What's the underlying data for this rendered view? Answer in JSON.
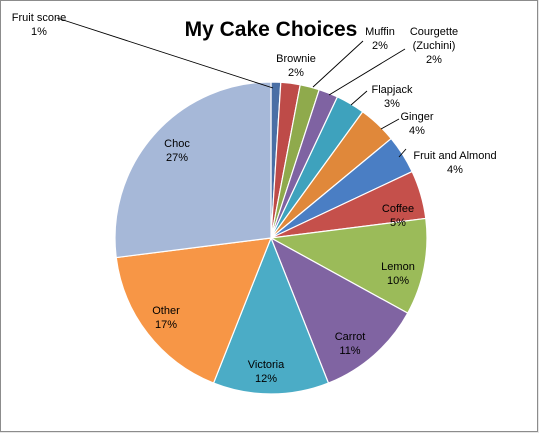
{
  "chart_data": {
    "type": "pie",
    "title": "My Cake Choices",
    "slices": [
      {
        "label": "Fruit scone",
        "value": 1,
        "pct_label": "1%",
        "color": "#4a6fa5"
      },
      {
        "label": "Brownie",
        "value": 2,
        "pct_label": "2%",
        "color": "#be4b48"
      },
      {
        "label": "Muffin",
        "value": 2,
        "pct_label": "2%",
        "color": "#8faa4c"
      },
      {
        "label": "Courgette (Zuchini)",
        "value": 2,
        "pct_label": "2%",
        "color": "#7f63a2"
      },
      {
        "label": "Flapjack",
        "value": 3,
        "pct_label": "3%",
        "color": "#3ea2bd"
      },
      {
        "label": "Ginger",
        "value": 4,
        "pct_label": "4%",
        "color": "#e0883a"
      },
      {
        "label": "Fruit and Almond",
        "value": 4,
        "pct_label": "4%",
        "color": "#4a7ec4"
      },
      {
        "label": "Coffee",
        "value": 5,
        "pct_label": "5%",
        "color": "#c5504b"
      },
      {
        "label": "Lemon",
        "value": 10,
        "pct_label": "10%",
        "color": "#9bbb59"
      },
      {
        "label": "Carrot",
        "value": 11,
        "pct_label": "11%",
        "color": "#8064a2"
      },
      {
        "label": "Victoria",
        "value": 12,
        "pct_label": "12%",
        "color": "#4bacc6"
      },
      {
        "label": "Other",
        "value": 17,
        "pct_label": "17%",
        "color": "#f79646"
      },
      {
        "label": "Choc",
        "value": 27,
        "pct_label": "27%",
        "color": "#a6b8d8"
      }
    ]
  }
}
